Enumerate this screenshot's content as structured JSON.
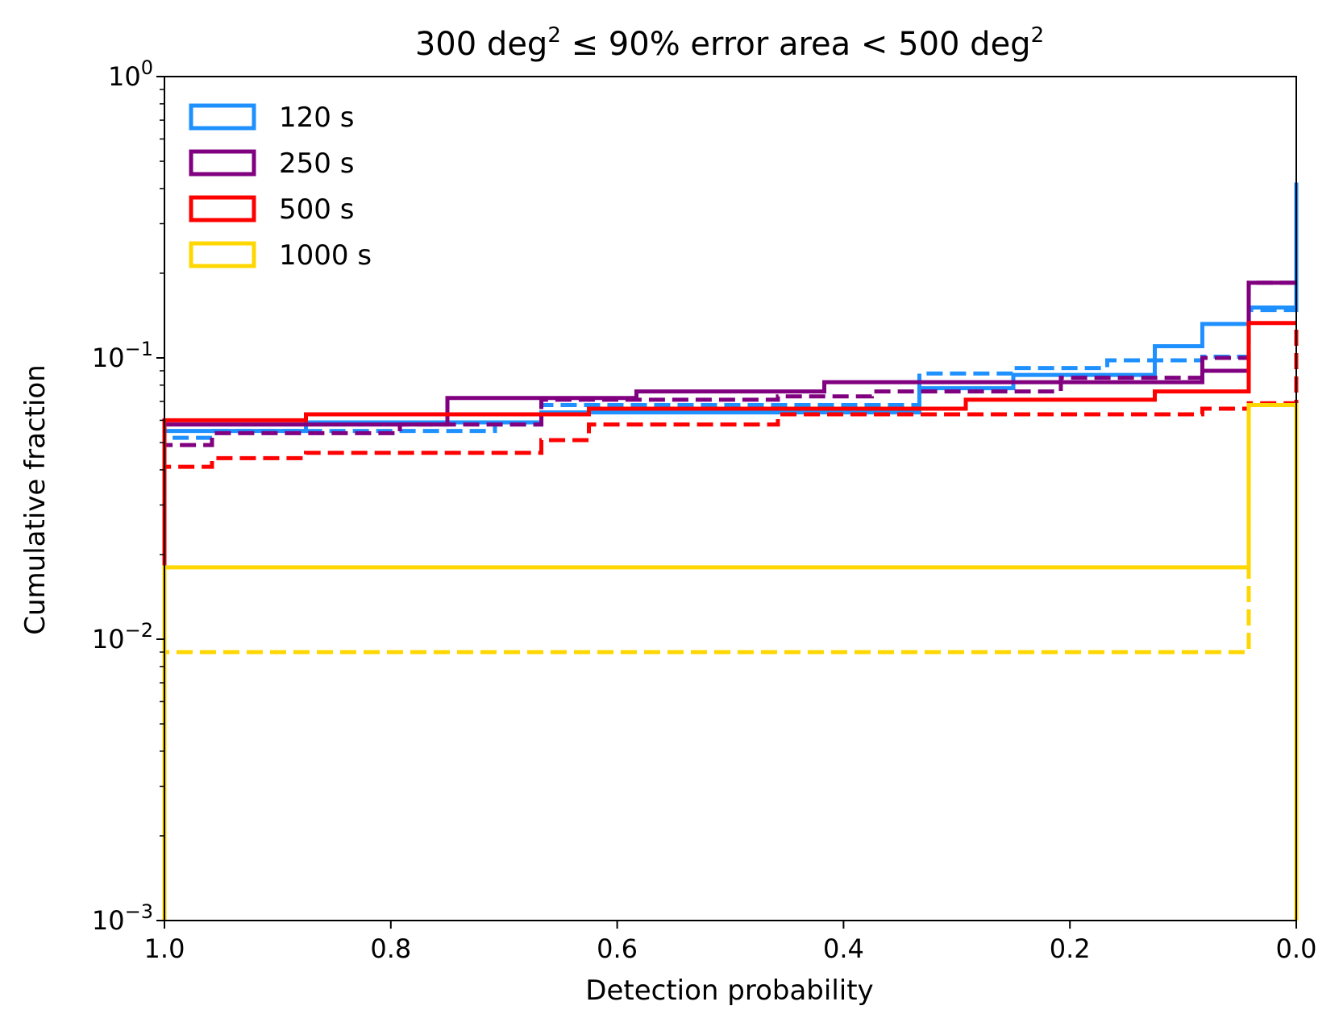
{
  "chart_data": {
    "type": "histogram-step",
    "title": {
      "prefix": "300 deg",
      "prefix_sup": "2",
      "middle": " ≤ 90% error area < 500 deg",
      "suffix_sup": "2"
    },
    "xlabel": "Detection probability",
    "ylabel": "Cumulative fraction",
    "x_axis": {
      "range": [
        1.0,
        0.0
      ],
      "inverted": true,
      "ticks": [
        1.0,
        0.8,
        0.6,
        0.4,
        0.2,
        0.0
      ],
      "tick_labels": [
        "1.0",
        "0.8",
        "0.6",
        "0.4",
        "0.2",
        "0.0"
      ]
    },
    "y_axis": {
      "scale": "log",
      "range": [
        0.001,
        1
      ],
      "ticks": [
        {
          "value": 1,
          "base": "10",
          "exp": "0"
        },
        {
          "value": 0.1,
          "base": "10",
          "exp": "−1"
        },
        {
          "value": 0.01,
          "base": "10",
          "exp": "−2"
        },
        {
          "value": 0.001,
          "base": "10",
          "exp": "−3"
        }
      ]
    },
    "legend": {
      "position": "top-left",
      "entries": [
        {
          "label": "120 s",
          "color": "#1e90ff"
        },
        {
          "label": "250 s",
          "color": "#800080"
        },
        {
          "label": "500 s",
          "color": "#ff0000"
        },
        {
          "label": "1000 s",
          "color": "#ffd700"
        }
      ]
    },
    "series": [
      {
        "name": "120 s",
        "style": "solid",
        "color": "#1e90ff",
        "edges": [
          1.0,
          0.958,
          0.875,
          0.708,
          0.667,
          0.625,
          0.5,
          0.333,
          0.25,
          0.167,
          0.125,
          0.083,
          0.042,
          0.0
        ],
        "values": [
          0.055,
          0.055,
          0.059,
          0.059,
          0.064,
          0.064,
          0.064,
          0.078,
          0.087,
          0.087,
          0.11,
          0.132,
          0.151,
          0.42
        ]
      },
      {
        "name": "120 s",
        "style": "dashed",
        "color": "#1e90ff",
        "edges": [
          1.0,
          0.958,
          0.875,
          0.708,
          0.667,
          0.625,
          0.5,
          0.333,
          0.25,
          0.167,
          0.125,
          0.083,
          0.042,
          0.0
        ],
        "values": [
          0.052,
          0.055,
          0.055,
          0.058,
          0.068,
          0.068,
          0.068,
          0.088,
          0.092,
          0.098,
          0.098,
          0.101,
          0.148,
          0.42
        ]
      },
      {
        "name": "250 s",
        "style": "solid",
        "color": "#800080",
        "edges": [
          1.0,
          0.958,
          0.875,
          0.75,
          0.583,
          0.417,
          0.375,
          0.125,
          0.083,
          0.042,
          0.0
        ],
        "values": [
          0.058,
          0.058,
          0.058,
          0.072,
          0.076,
          0.082,
          0.082,
          0.082,
          0.09,
          0.185,
          0.185
        ]
      },
      {
        "name": "250 s",
        "style": "dashed",
        "color": "#800080",
        "edges": [
          1.0,
          0.958,
          0.792,
          0.667,
          0.458,
          0.375,
          0.208,
          0.083,
          0.042,
          0.0
        ],
        "values": [
          0.049,
          0.054,
          0.058,
          0.071,
          0.073,
          0.076,
          0.085,
          0.1,
          0.185,
          0.185
        ]
      },
      {
        "name": "500 s",
        "style": "solid",
        "color": "#ff0000",
        "edges": [
          1.0,
          0.875,
          0.625,
          0.292,
          0.125,
          0.042,
          0.0
        ],
        "values": [
          0.06,
          0.063,
          0.066,
          0.071,
          0.076,
          0.133,
          0.133
        ]
      },
      {
        "name": "500 s",
        "style": "dashed",
        "color": "#ff0000",
        "edges": [
          1.0,
          0.958,
          0.875,
          0.667,
          0.625,
          0.458,
          0.083,
          0.042,
          0.0
        ],
        "values": [
          0.041,
          0.044,
          0.046,
          0.051,
          0.058,
          0.063,
          0.066,
          0.069,
          0.133
        ]
      },
      {
        "name": "1000 s",
        "style": "solid",
        "color": "#ffd700",
        "edges": [
          1.0,
          0.042,
          0.0
        ],
        "values": [
          0.018,
          0.068
        ]
      },
      {
        "name": "1000 s",
        "style": "dashed",
        "color": "#ffd700",
        "edges": [
          1.0,
          0.042,
          0.0
        ],
        "values": [
          0.009,
          0.068
        ]
      }
    ]
  }
}
